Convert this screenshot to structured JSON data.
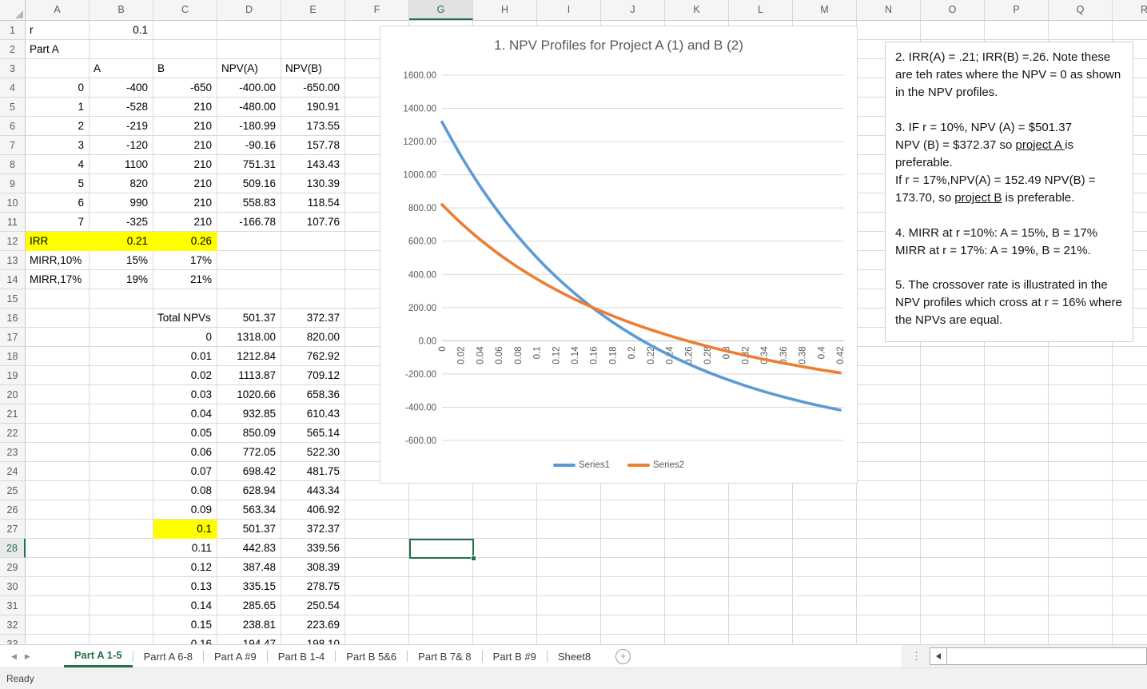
{
  "app": {
    "status": "Ready"
  },
  "colors": {
    "series1": "#5B9BD5",
    "series2": "#ED7D31",
    "highlight_yellow": "#FFFF00",
    "excel_green": "#217346"
  },
  "sheet": {
    "col_headers": [
      "A",
      "B",
      "C",
      "D",
      "E",
      "F",
      "G",
      "H",
      "I",
      "J",
      "K",
      "L",
      "M",
      "N",
      "O",
      "P",
      "Q",
      "R"
    ],
    "visible_rows": 33,
    "active": {
      "col": "G",
      "row": 28,
      "cell": "G28"
    },
    "text_cells": [
      {
        "r": 1,
        "c": "A",
        "v": "r",
        "align": "l"
      },
      {
        "r": 1,
        "c": "B",
        "v": "0.1",
        "align": "r"
      },
      {
        "r": 2,
        "c": "A",
        "v": "Part A",
        "align": "l"
      },
      {
        "r": 3,
        "c": "B",
        "v": "A",
        "align": "l"
      },
      {
        "r": 3,
        "c": "C",
        "v": "B",
        "align": "l"
      },
      {
        "r": 3,
        "c": "D",
        "v": "NPV(A)",
        "align": "l"
      },
      {
        "r": 3,
        "c": "E",
        "v": "NPV(B)",
        "align": "l"
      },
      {
        "r": 12,
        "c": "A",
        "v": "IRR",
        "align": "l",
        "fill": "yellow"
      },
      {
        "r": 12,
        "c": "B",
        "v": "0.21",
        "align": "r",
        "fill": "yellow"
      },
      {
        "r": 12,
        "c": "C",
        "v": "0.26",
        "align": "r",
        "fill": "yellow"
      },
      {
        "r": 13,
        "c": "A",
        "v": "MIRR,10%",
        "align": "l"
      },
      {
        "r": 13,
        "c": "B",
        "v": "15%",
        "align": "r"
      },
      {
        "r": 13,
        "c": "C",
        "v": "17%",
        "align": "r"
      },
      {
        "r": 14,
        "c": "A",
        "v": "MIRR,17%",
        "align": "l"
      },
      {
        "r": 14,
        "c": "B",
        "v": "19%",
        "align": "r"
      },
      {
        "r": 14,
        "c": "C",
        "v": "21%",
        "align": "r"
      },
      {
        "r": 16,
        "c": "C",
        "v": "Total NPVs",
        "align": "l"
      },
      {
        "r": 16,
        "c": "D",
        "v": "501.37",
        "align": "r"
      },
      {
        "r": 16,
        "c": "E",
        "v": "372.37",
        "align": "r"
      }
    ],
    "cashflow_rows": {
      "start_row": 4,
      "cols": [
        "A",
        "B",
        "C",
        "D",
        "E"
      ],
      "data": [
        [
          "0",
          "-400",
          "-650",
          "-400.00",
          "-650.00"
        ],
        [
          "1",
          "-528",
          "210",
          "-480.00",
          "190.91"
        ],
        [
          "2",
          "-219",
          "210",
          "-180.99",
          "173.55"
        ],
        [
          "3",
          "-120",
          "210",
          "-90.16",
          "157.78"
        ],
        [
          "4",
          "1100",
          "210",
          "751.31",
          "143.43"
        ],
        [
          "5",
          "820",
          "210",
          "509.16",
          "130.39"
        ],
        [
          "6",
          "990",
          "210",
          "558.83",
          "118.54"
        ],
        [
          "7",
          "-325",
          "210",
          "-166.78",
          "107.76"
        ]
      ]
    },
    "rate_rows": {
      "start_row": 17,
      "cols": [
        "C",
        "D",
        "E"
      ],
      "highlight": {
        "row": 27,
        "col": "C"
      },
      "data": [
        [
          "0",
          "1318.00",
          "820.00"
        ],
        [
          "0.01",
          "1212.84",
          "762.92"
        ],
        [
          "0.02",
          "1113.87",
          "709.12"
        ],
        [
          "0.03",
          "1020.66",
          "658.36"
        ],
        [
          "0.04",
          "932.85",
          "610.43"
        ],
        [
          "0.05",
          "850.09",
          "565.14"
        ],
        [
          "0.06",
          "772.05",
          "522.30"
        ],
        [
          "0.07",
          "698.42",
          "481.75"
        ],
        [
          "0.08",
          "628.94",
          "443.34"
        ],
        [
          "0.09",
          "563.34",
          "406.92"
        ],
        [
          "0.1",
          "501.37",
          "372.37"
        ],
        [
          "0.11",
          "442.83",
          "339.56"
        ],
        [
          "0.12",
          "387.48",
          "308.39"
        ],
        [
          "0.13",
          "335.15",
          "278.75"
        ],
        [
          "0.14",
          "285.65",
          "250.54"
        ],
        [
          "0.15",
          "238.81",
          "223.69"
        ],
        [
          "0.16",
          "194.47",
          "198.10"
        ]
      ]
    }
  },
  "chart_data": {
    "type": "line",
    "title": "1. NPV Profiles for Project A (1) and B (2)",
    "x": [
      0,
      0.02,
      0.04,
      0.06,
      0.08,
      0.1,
      0.12,
      0.14,
      0.16,
      0.18,
      0.2,
      0.22,
      0.24,
      0.26,
      0.28,
      0.3,
      0.32,
      0.34,
      0.36,
      0.38,
      0.4,
      0.42
    ],
    "x_tick_labels": [
      "0",
      "0.02",
      "0.04",
      "0.06",
      "0.08",
      "0.1",
      "0.12",
      "0.14",
      "0.16",
      "0.18",
      "0.2",
      "0.22",
      "0.24",
      "0.26",
      "0.28",
      "0.3",
      "0.32",
      "0.34",
      "0.36",
      "0.38",
      "0.4",
      "0.42"
    ],
    "y_tick_labels": [
      "1600.00",
      "1400.00",
      "1200.00",
      "1000.00",
      "800.00",
      "600.00",
      "400.00",
      "200.00",
      "0.00",
      "-200.00",
      "-400.00",
      "-600.00"
    ],
    "ylim": [
      -600,
      1600
    ],
    "ytick_step": 200,
    "grid": "horizontal",
    "legend_position": "bottom",
    "series": [
      {
        "name": "Series1",
        "color": "#5B9BD5",
        "values": [
          1318.0,
          1113.87,
          932.85,
          772.05,
          628.94,
          501.37,
          387.48,
          285.65,
          194.47,
          112.72,
          39.35,
          -26.61,
          -85.97,
          -139.4,
          -187.59,
          -231.06,
          -270.5,
          -305.98,
          -337.87,
          -366.88,
          -393.14,
          -416.94
        ]
      },
      {
        "name": "Series2",
        "color": "#ED7D31",
        "values": [
          820.0,
          709.12,
          610.43,
          522.3,
          443.34,
          372.37,
          308.39,
          250.54,
          198.1,
          150.43,
          107.01,
          67.26,
          30.88,
          -2.36,
          -33.24,
          -61.57,
          -87.7,
          -111.93,
          -134.45,
          -155.33,
          -174.84,
          -193.04
        ]
      }
    ]
  },
  "note_box": {
    "paragraphs": [
      [
        {
          "t": "2. IRR(A) = .21; IRR(B) =.26. Note these are teh rates where the NPV = 0 as shown in the NPV profiles."
        }
      ],
      [
        {
          "t": "3. IF r = 10%, NPV (A) = $501.37"
        },
        {
          "br": true
        },
        {
          "t": "NPV (B)  = $372.37 so "
        },
        {
          "t": "project A ",
          "u": true
        },
        {
          "t": "is preferable."
        },
        {
          "br": true
        },
        {
          "t": "If r = 17%,NPV(A) = 152.49 NPV(B) = 173.70, so "
        },
        {
          "t": "project B",
          "u": true
        },
        {
          "t": " is preferable."
        }
      ],
      [
        {
          "t": "4. MIRR at r =10%: A = 15%, B = 17%"
        },
        {
          "br": true
        },
        {
          "t": "MIRR at r = 17%: A = 19%, B = 21%."
        }
      ],
      [
        {
          "t": "5. The crossover rate is illustrated in the NPV profiles which cross at r = 16% where the NPVs are equal."
        }
      ]
    ]
  },
  "tabbar": {
    "tabs": [
      {
        "label": "Part A 1-5",
        "active": true
      },
      {
        "label": "Parrt A 6-8",
        "active": false
      },
      {
        "label": "Part A #9",
        "active": false
      },
      {
        "label": "Part B 1-4",
        "active": false
      },
      {
        "label": "Part B 5&6",
        "active": false
      },
      {
        "label": "Part B 7& 8",
        "active": false
      },
      {
        "label": "Part B #9",
        "active": false
      },
      {
        "label": "Sheet8",
        "active": false
      }
    ],
    "add_sheet_label": "+"
  }
}
